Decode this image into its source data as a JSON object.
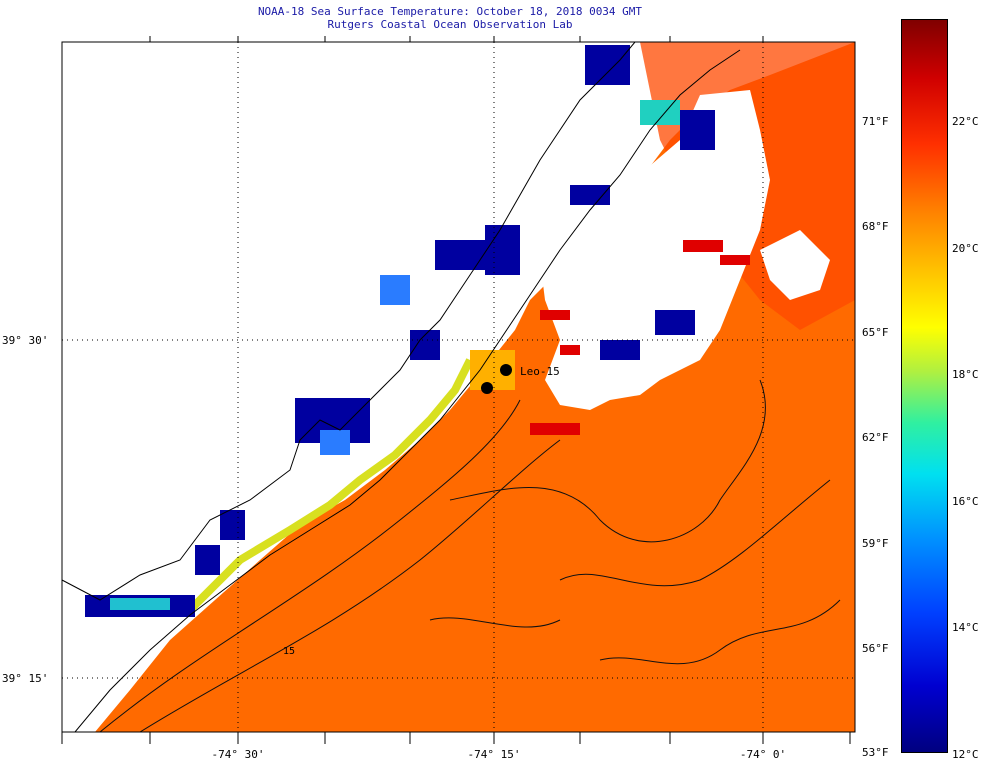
{
  "title_line1": "NOAA-18 Sea Surface Temperature:  October 18, 2018 0034 GMT",
  "title_line2": "Rutgers Coastal Ocean Observation Lab",
  "lat_labels": [
    "39° 30'",
    "39° 15'"
  ],
  "lon_labels": [
    "-74° 30'",
    "-74° 15'",
    "-74° 0'"
  ],
  "fahrenheit_labels": [
    "71°F",
    "68°F",
    "65°F",
    "62°F",
    "59°F",
    "56°F",
    "53°F"
  ],
  "celsius_labels": [
    "22°C",
    "20°C",
    "18°C",
    "16°C",
    "14°C",
    "12°C"
  ],
  "station_label": "Leo-15",
  "contour_label": "15",
  "colors": {
    "ocean_warm": "#ff6a00",
    "ocean_hot": "#ff3a00",
    "cold_pixel": "#0000a0",
    "title_blue": "#1a1aa6"
  }
}
